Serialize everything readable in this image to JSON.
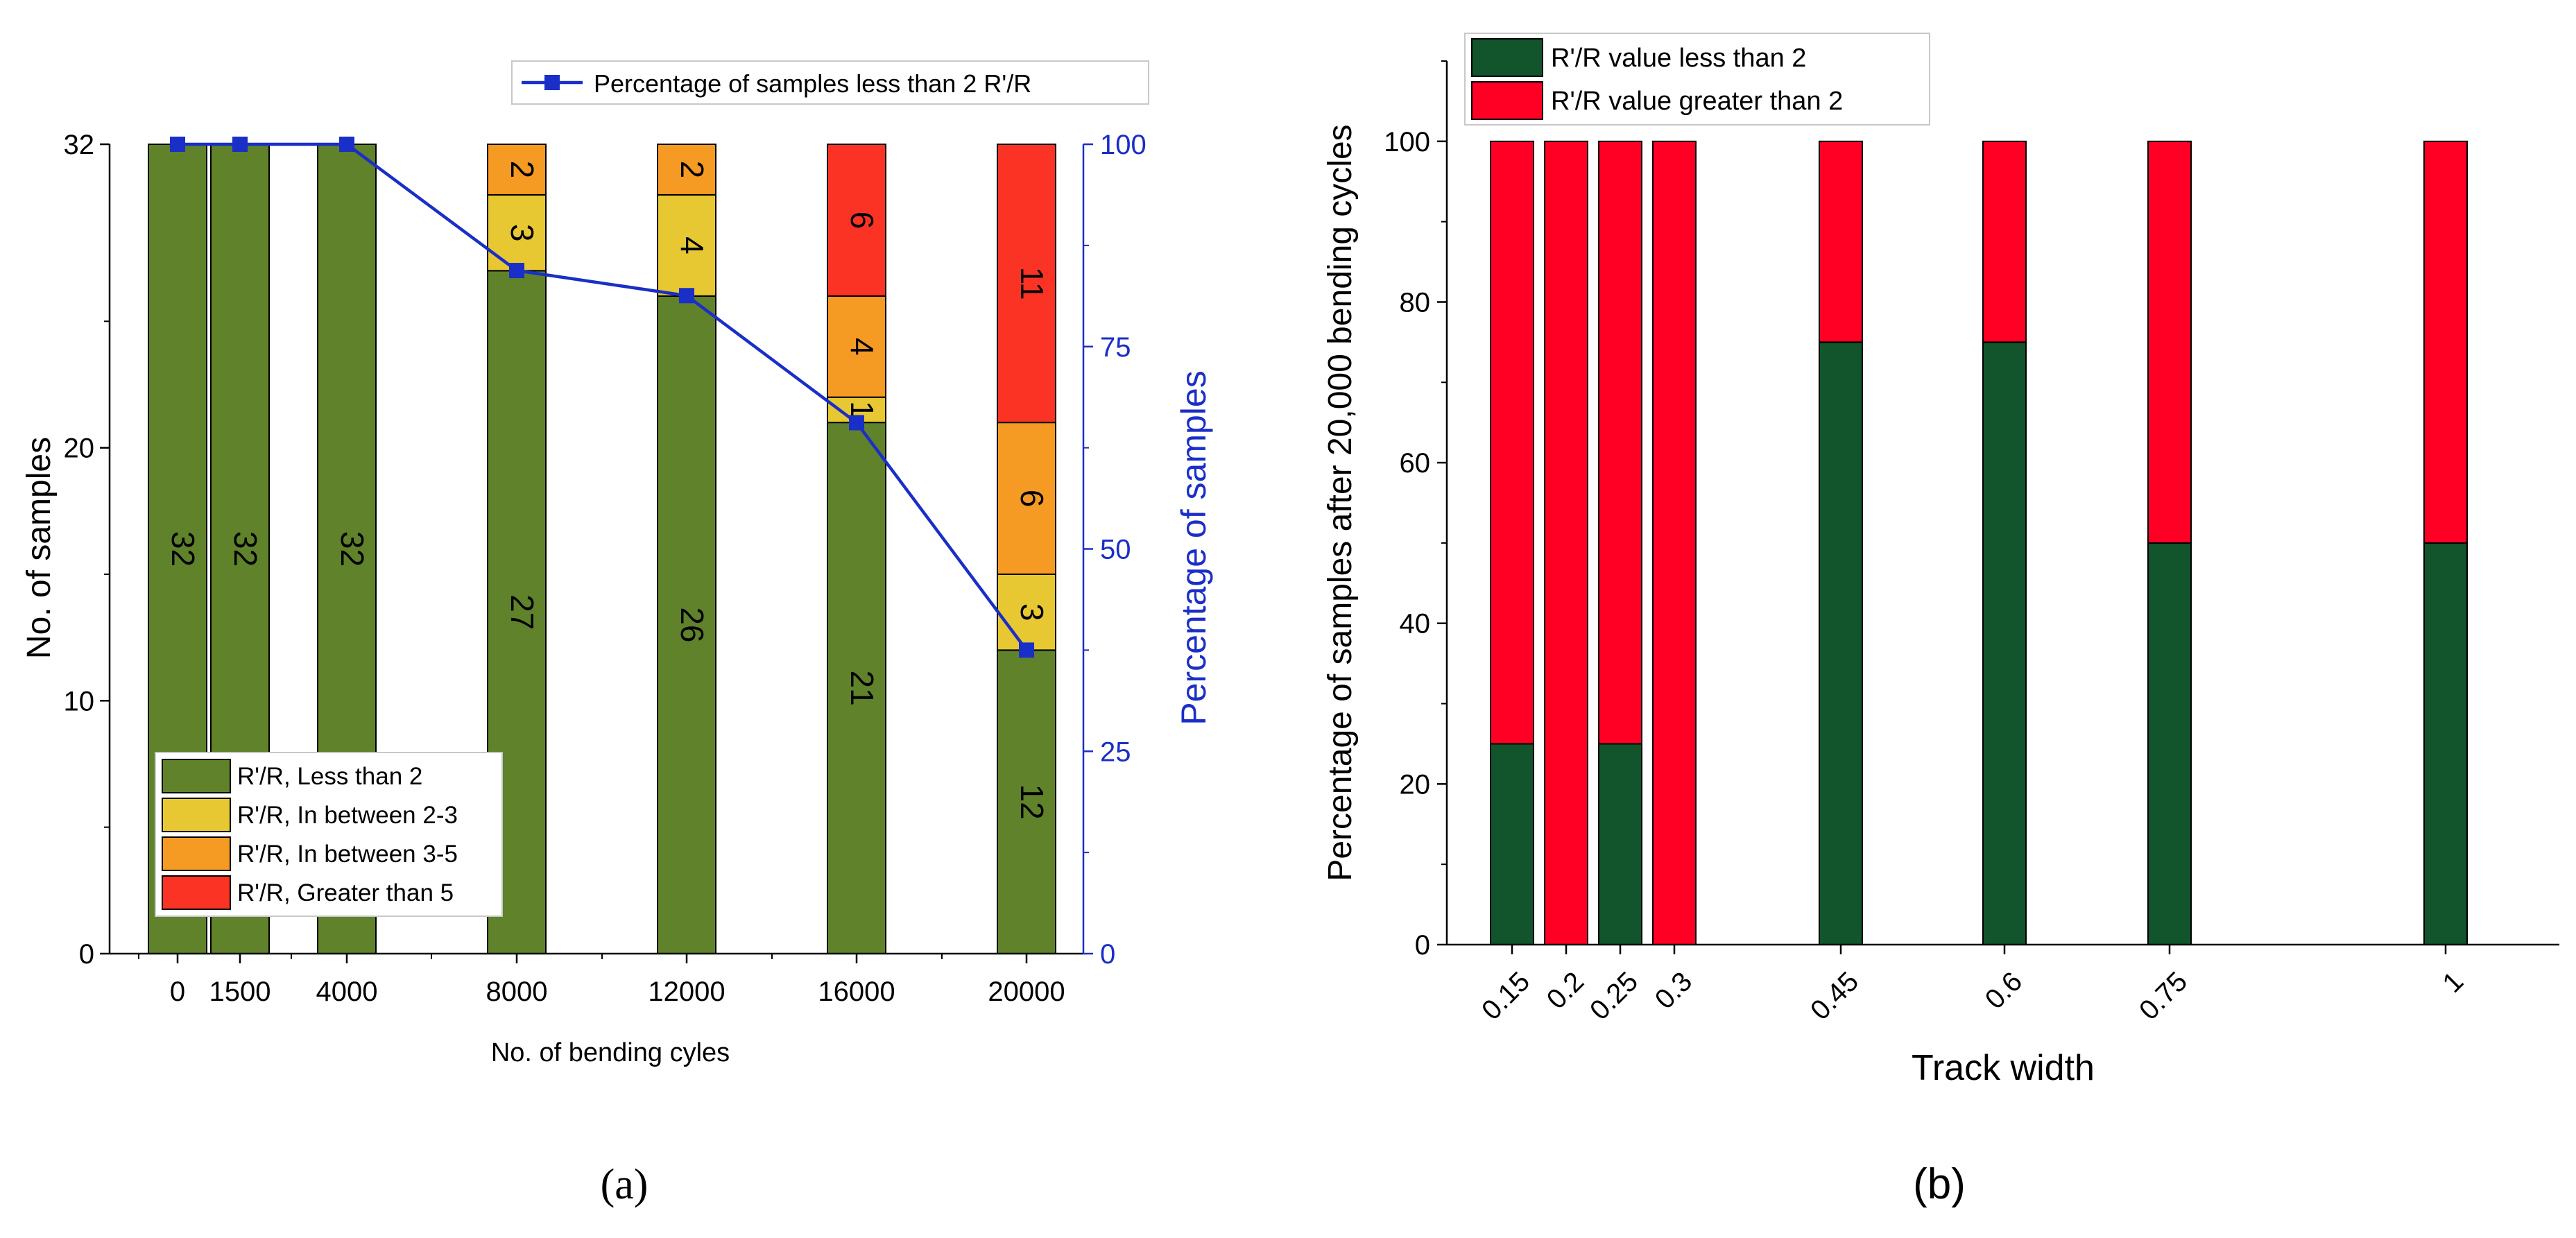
{
  "chart_data": [
    {
      "id": "a",
      "panel_label": "(a)",
      "type": "bar",
      "stacked": true,
      "secondary_line": true,
      "x_categories": [
        "0",
        "1500",
        "4000",
        "8000",
        "12000",
        "16000",
        "20000"
      ],
      "xlabel": "No. of bending cyles",
      "ylabel": "No. of samples",
      "y2label": "Percentage of samples",
      "y_ticks": [
        0,
        10,
        20,
        32
      ],
      "y2_ticks": [
        0,
        25,
        50,
        75,
        100
      ],
      "ylim": [
        0,
        32
      ],
      "y2lim": [
        0,
        100
      ],
      "series": [
        {
          "name": "R'/R, Less than 2",
          "color": "#5f822a",
          "values": [
            32,
            32,
            32,
            27,
            26,
            21,
            12
          ]
        },
        {
          "name": "R'/R, In between 2-3",
          "color": "#e8c832",
          "values": [
            0,
            0,
            0,
            3,
            4,
            1,
            3
          ]
        },
        {
          "name": "R'/R, In between 3-5",
          "color": "#f59a23",
          "values": [
            0,
            0,
            0,
            2,
            2,
            4,
            6
          ]
        },
        {
          "name": "R'/R, Greater than 5",
          "color": "#fb3325",
          "values": [
            0,
            0,
            0,
            0,
            0,
            6,
            11
          ]
        }
      ],
      "bar_labels": [
        [
          "32",
          "",
          "",
          ""
        ],
        [
          "32",
          "",
          "",
          ""
        ],
        [
          "32",
          "",
          "",
          ""
        ],
        [
          "27",
          "3",
          "2",
          ""
        ],
        [
          "26",
          "4",
          "2",
          ""
        ],
        [
          "21",
          "1",
          "4",
          "6"
        ],
        [
          "12",
          "3",
          "6",
          "11"
        ]
      ],
      "line": {
        "name": "Percentage of samples less than 2 R'/R",
        "color": "#1a2ec8",
        "values": [
          100,
          100,
          100,
          84.4,
          81.3,
          65.6,
          37.5
        ]
      }
    },
    {
      "id": "b",
      "panel_label": "(b)",
      "type": "bar",
      "stacked": true,
      "x_categories": [
        "0.15",
        "0.2",
        "0.25",
        "0.3",
        "0.45",
        "0.6",
        "0.75",
        "1"
      ],
      "xlabel": "Track width",
      "ylabel": "Percentage of samples after 20,000 bending cycles",
      "y_ticks": [
        0,
        20,
        40,
        60,
        80,
        100
      ],
      "ylim": [
        0,
        110
      ],
      "series": [
        {
          "name": "R'/R value less than 2",
          "color": "#12542b",
          "values": [
            25,
            0,
            25,
            0,
            75,
            75,
            50,
            50
          ]
        },
        {
          "name": "R'/R value greater than 2",
          "color": "#ff0024",
          "values": [
            75,
            100,
            75,
            100,
            25,
            25,
            50,
            50
          ]
        }
      ]
    }
  ]
}
